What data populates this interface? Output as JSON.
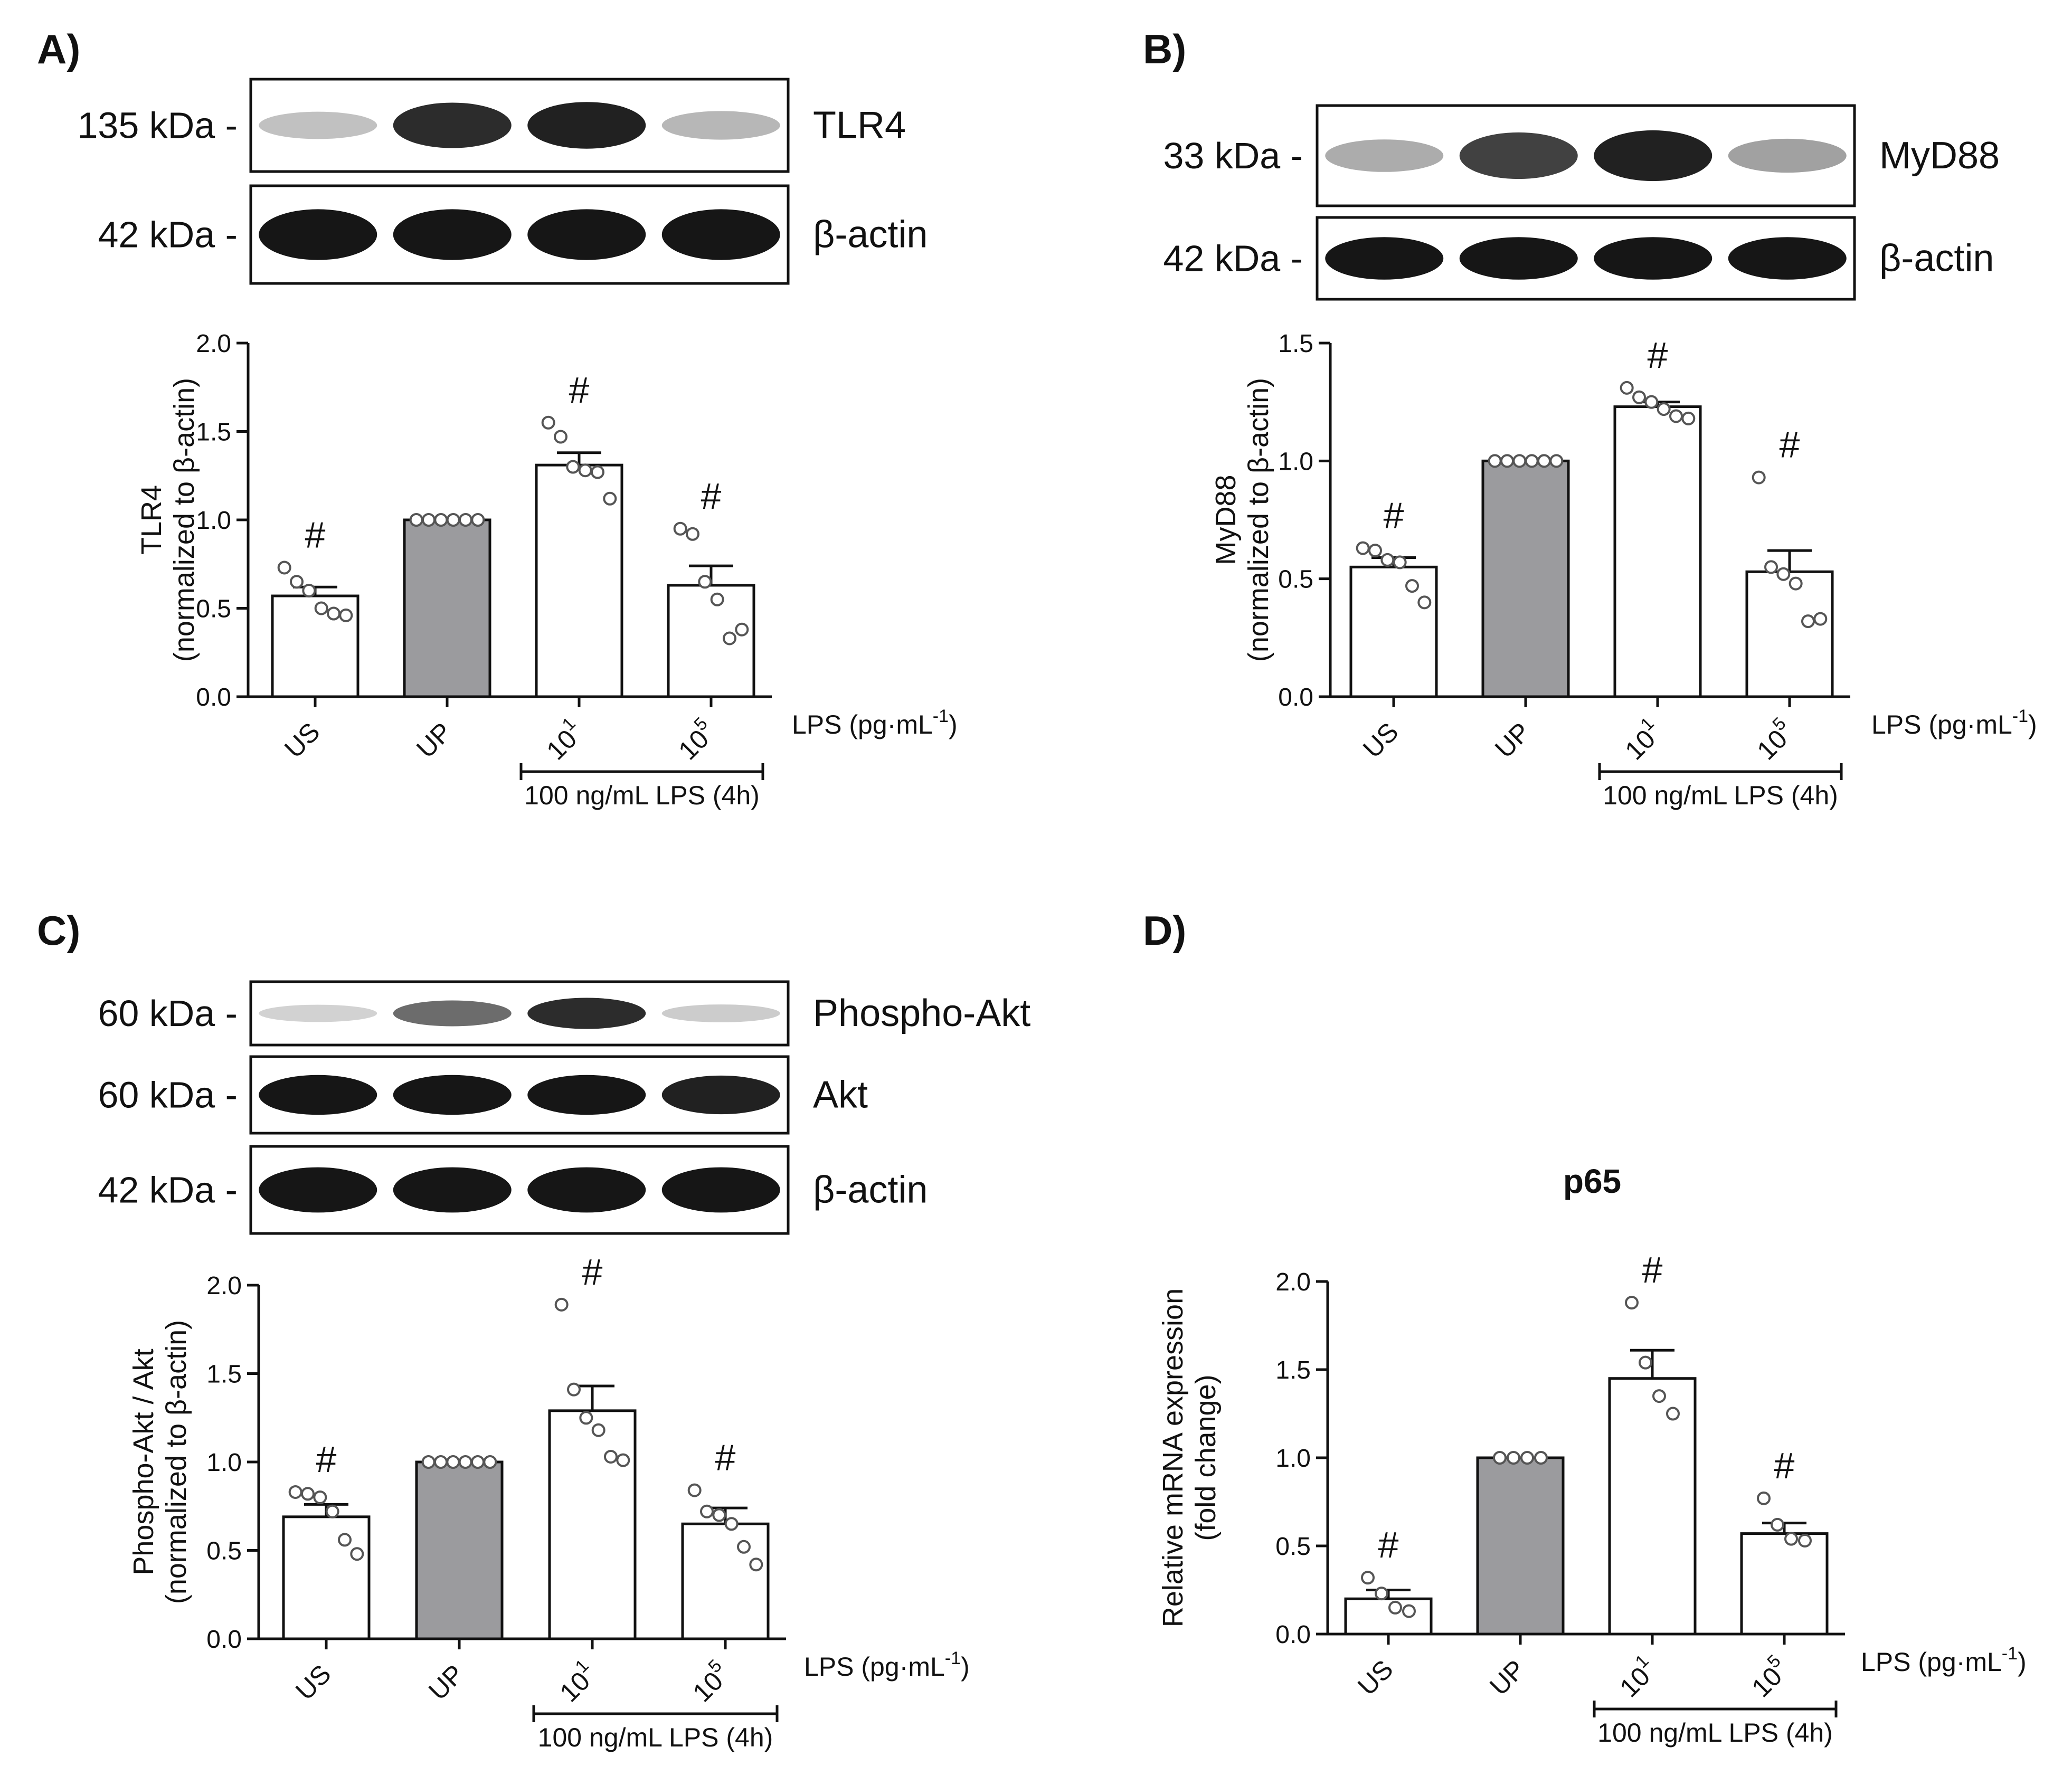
{
  "figure": {
    "x_axis_note": "LPS (pg·mL",
    "x_axis_note_sup": "-1",
    "x_axis_note_end": ")",
    "bracket_label": "100 ng/mL LPS (4h)",
    "significance_symbol": "#",
    "kda_suffix": " -"
  },
  "blots": {
    "A": {
      "panel_label": "A)",
      "rows": [
        {
          "kda": "135 kDa",
          "protein": "TLR4",
          "band_intensity": [
            0.2,
            0.9,
            0.95,
            0.25
          ]
        },
        {
          "kda": "42 kDa",
          "protein": "β-actin",
          "band_intensity": [
            1,
            1,
            1,
            1
          ]
        }
      ]
    },
    "B": {
      "panel_label": "B)",
      "rows": [
        {
          "kda": "33 kDa",
          "protein": "MyD88",
          "band_intensity": [
            0.3,
            0.8,
            0.95,
            0.35
          ]
        },
        {
          "kda": "42 kDa",
          "protein": "β-actin",
          "band_intensity": [
            1,
            1,
            1,
            1
          ]
        }
      ]
    },
    "C": {
      "panel_label": "C)",
      "rows": [
        {
          "kda": "60 kDa",
          "protein": "Phospho-Akt",
          "band_intensity": [
            0.12,
            0.6,
            0.9,
            0.15
          ]
        },
        {
          "kda": "60 kDa",
          "protein": "Akt",
          "band_intensity": [
            1,
            1,
            1,
            0.95
          ]
        },
        {
          "kda": "42 kDa",
          "protein": "β-actin",
          "band_intensity": [
            1,
            1,
            1,
            1
          ]
        }
      ]
    },
    "D": {
      "panel_label": "D)",
      "rows": []
    }
  },
  "chart_data": [
    {
      "panel": "A",
      "type": "bar",
      "title": "",
      "ylabel": "TLR4",
      "ylabel2": "(normalized to β-actin)",
      "ylim": [
        0,
        2.0
      ],
      "yticks": [
        "0.0",
        "0.5",
        "1.0",
        "1.5",
        "2.0"
      ],
      "categories": [
        "US",
        "UP",
        "10",
        "10"
      ],
      "category_sup": [
        "",
        "",
        "1",
        "5"
      ],
      "values": [
        0.57,
        1.0,
        1.31,
        0.63
      ],
      "sem": [
        0.05,
        0.0,
        0.07,
        0.11
      ],
      "significant": [
        true,
        false,
        true,
        true
      ],
      "points": [
        [
          0.73,
          0.65,
          0.6,
          0.5,
          0.47,
          0.46
        ],
        [
          1.0,
          1.0,
          1.0,
          1.0,
          1.0,
          1.0
        ],
        [
          1.55,
          1.47,
          1.3,
          1.28,
          1.27,
          1.12
        ],
        [
          0.95,
          0.92,
          0.65,
          0.55,
          0.33,
          0.38
        ]
      ],
      "bar_colors": [
        "#ffffff",
        "#9b9b9e",
        "#ffffff",
        "#ffffff"
      ]
    },
    {
      "panel": "B",
      "type": "bar",
      "title": "",
      "ylabel": "MyD88",
      "ylabel2": "(normalized to β-actin)",
      "ylim": [
        0,
        1.5
      ],
      "yticks": [
        "0.0",
        "0.5",
        "1.0",
        "1.5"
      ],
      "categories": [
        "US",
        "UP",
        "10",
        "10"
      ],
      "category_sup": [
        "",
        "",
        "1",
        "5"
      ],
      "values": [
        0.55,
        1.0,
        1.23,
        0.53
      ],
      "sem": [
        0.04,
        0.0,
        0.02,
        0.09
      ],
      "significant": [
        true,
        false,
        true,
        true
      ],
      "points": [
        [
          0.63,
          0.62,
          0.58,
          0.57,
          0.47,
          0.4
        ],
        [
          1.0,
          1.0,
          1.0,
          1.0,
          1.0,
          1.0
        ],
        [
          1.31,
          1.27,
          1.25,
          1.22,
          1.19,
          1.18
        ],
        [
          0.93,
          0.55,
          0.52,
          0.48,
          0.32,
          0.33
        ]
      ],
      "bar_colors": [
        "#ffffff",
        "#9b9b9e",
        "#ffffff",
        "#ffffff"
      ]
    },
    {
      "panel": "C",
      "type": "bar",
      "title": "",
      "ylabel": "Phospho-Akt / Akt",
      "ylabel2": "(normalized to β-actin)",
      "ylim": [
        0,
        2.0
      ],
      "yticks": [
        "0.0",
        "0.5",
        "1.0",
        "1.5",
        "2.0"
      ],
      "categories": [
        "US",
        "UP",
        "10",
        "10"
      ],
      "category_sup": [
        "",
        "",
        "1",
        "5"
      ],
      "values": [
        0.69,
        1.0,
        1.29,
        0.65
      ],
      "sem": [
        0.07,
        0.0,
        0.14,
        0.09
      ],
      "significant": [
        true,
        false,
        true,
        true
      ],
      "points": [
        [
          0.83,
          0.82,
          0.8,
          0.72,
          0.56,
          0.48
        ],
        [
          1.0,
          1.0,
          1.0,
          1.0,
          1.0,
          1.0
        ],
        [
          1.89,
          1.41,
          1.25,
          1.18,
          1.03,
          1.01
        ],
        [
          0.84,
          0.72,
          0.7,
          0.65,
          0.52,
          0.42
        ]
      ],
      "bar_colors": [
        "#ffffff",
        "#9b9b9e",
        "#ffffff",
        "#ffffff"
      ]
    },
    {
      "panel": "D",
      "type": "bar",
      "title": "p65",
      "ylabel": "Relative mRNA expression",
      "ylabel2": "(fold change)",
      "ylim": [
        0,
        2.0
      ],
      "yticks": [
        "0.0",
        "0.5",
        "1.0",
        "1.5",
        "2.0"
      ],
      "categories": [
        "US",
        "UP",
        "10",
        "10"
      ],
      "category_sup": [
        "",
        "",
        "1",
        "5"
      ],
      "values": [
        0.2,
        1.0,
        1.45,
        0.57
      ],
      "sem": [
        0.05,
        0.0,
        0.16,
        0.06
      ],
      "significant": [
        true,
        false,
        true,
        true
      ],
      "points": [
        [
          0.32,
          0.23,
          0.15,
          0.13
        ],
        [
          1.0,
          1.0,
          1.0,
          1.0
        ],
        [
          1.88,
          1.54,
          1.35,
          1.25
        ],
        [
          0.77,
          0.62,
          0.54,
          0.53
        ]
      ],
      "bar_colors": [
        "#ffffff",
        "#9b9b9e",
        "#ffffff",
        "#ffffff"
      ]
    }
  ]
}
